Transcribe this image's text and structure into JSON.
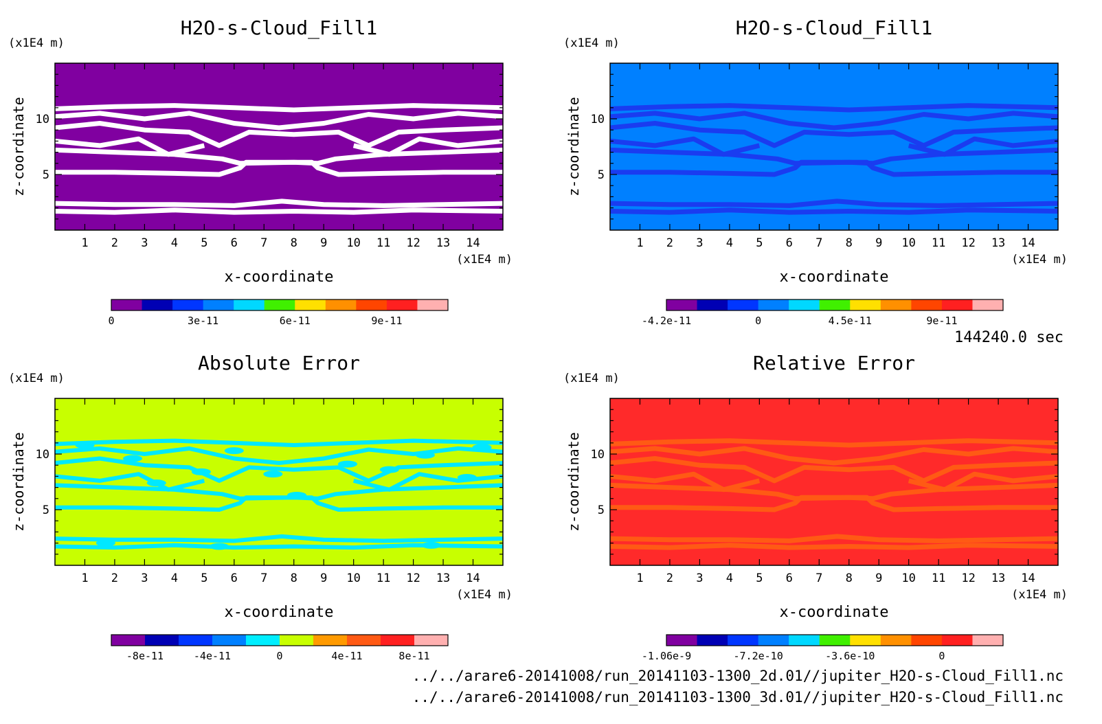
{
  "time_label": "144240.0 sec",
  "files": [
    "../../arare6-20141008/run_20141103-1300_2d.01//jupiter_H2O-s-Cloud_Fill1.nc",
    "../../arare6-20141008/run_20141103-1300_3d.01//jupiter_H2O-s-Cloud_Fill1.nc"
  ],
  "colors": {
    "purple": "#8000a0",
    "light_blue": "#0080ff",
    "yellow_green": "#c8ff00",
    "red": "#ff2a2a",
    "white": "#ffffff",
    "contour_dark_blue": "#1a3cf0",
    "contour_cyan": "#00e8ff",
    "contour_orange": "#ff5a14"
  },
  "chart_data": [
    {
      "type": "heatmap",
      "title": "H2O-s-Cloud_Fill1",
      "xlabel": "x-coordinate",
      "ylabel": "z-coordinate",
      "x_unit": "(x1E4 m)",
      "y_unit": "(x1E4 m)",
      "x_ticks": [
        1,
        2,
        3,
        4,
        5,
        6,
        7,
        8,
        9,
        10,
        11,
        12,
        13,
        14
      ],
      "y_ticks": [
        5,
        10
      ],
      "xlim": [
        0,
        15
      ],
      "ylim": [
        0,
        15
      ],
      "background": "#8000a0",
      "contour_color": "#ffffff",
      "colorbar": {
        "colors": [
          "#8000a0",
          "#0000b4",
          "#0036ff",
          "#0080ff",
          "#00d8ff",
          "#40f000",
          "#ffe000",
          "#ff9000",
          "#ff4500",
          "#ff2020",
          "#ffb0b0"
        ],
        "labels": [
          {
            "text": "0",
            "at": 0
          },
          {
            "text": "3e-11",
            "at": 3
          },
          {
            "text": "6e-11",
            "at": 6
          },
          {
            "text": "9e-11",
            "at": 9
          }
        ]
      }
    },
    {
      "type": "heatmap",
      "title": "H2O-s-Cloud_Fill1",
      "xlabel": "x-coordinate",
      "ylabel": "z-coordinate",
      "x_unit": "(x1E4 m)",
      "y_unit": "(x1E4 m)",
      "x_ticks": [
        1,
        2,
        3,
        4,
        5,
        6,
        7,
        8,
        9,
        10,
        11,
        12,
        13,
        14
      ],
      "y_ticks": [
        5,
        10
      ],
      "xlim": [
        0,
        15
      ],
      "ylim": [
        0,
        15
      ],
      "background": "#0080ff",
      "contour_color": "#1a3cf0",
      "colorbar": {
        "colors": [
          "#8000a0",
          "#0000b4",
          "#0036ff",
          "#0080ff",
          "#00d8ff",
          "#40f000",
          "#ffe000",
          "#ff9000",
          "#ff4500",
          "#ff2020",
          "#ffb0b0"
        ],
        "labels": [
          {
            "text": "-4.2e-11",
            "at": 0
          },
          {
            "text": "0",
            "at": 3
          },
          {
            "text": "4.5e-11",
            "at": 6
          },
          {
            "text": "9e-11",
            "at": 9
          }
        ]
      }
    },
    {
      "type": "heatmap",
      "title": "Absolute Error",
      "xlabel": "x-coordinate",
      "ylabel": "z-coordinate",
      "x_unit": "(x1E4 m)",
      "y_unit": "(x1E4 m)",
      "x_ticks": [
        1,
        2,
        3,
        4,
        5,
        6,
        7,
        8,
        9,
        10,
        11,
        12,
        13,
        14
      ],
      "y_ticks": [
        5,
        10
      ],
      "xlim": [
        0,
        15
      ],
      "ylim": [
        0,
        15
      ],
      "background": "#c8ff00",
      "contour_color": "#00e8ff",
      "colorbar": {
        "colors": [
          "#8000a0",
          "#0000b4",
          "#0036ff",
          "#0080ff",
          "#00eeff",
          "#c8ff00",
          "#ff9a00",
          "#ff5a14",
          "#ff2020",
          "#ffb0b0"
        ],
        "labels": [
          {
            "text": "-8e-11",
            "at": 1
          },
          {
            "text": "-4e-11",
            "at": 3
          },
          {
            "text": "0",
            "at": 5
          },
          {
            "text": "4e-11",
            "at": 7
          },
          {
            "text": "8e-11",
            "at": 9
          }
        ]
      }
    },
    {
      "type": "heatmap",
      "title": "Relative Error",
      "xlabel": "x-coordinate",
      "ylabel": "z-coordinate",
      "x_unit": "(x1E4 m)",
      "y_unit": "(x1E4 m)",
      "x_ticks": [
        1,
        2,
        3,
        4,
        5,
        6,
        7,
        8,
        9,
        10,
        11,
        12,
        13,
        14
      ],
      "y_ticks": [
        5,
        10
      ],
      "xlim": [
        0,
        15
      ],
      "ylim": [
        0,
        15
      ],
      "background": "#ff2a2a",
      "contour_color": "#ff5a14",
      "colorbar": {
        "colors": [
          "#8000a0",
          "#0000b4",
          "#0036ff",
          "#0080ff",
          "#00d8ff",
          "#40f000",
          "#ffe000",
          "#ff9000",
          "#ff4500",
          "#ff2020",
          "#ffb0b0"
        ],
        "labels": [
          {
            "text": "-1.06e-9",
            "at": 0
          },
          {
            "text": "-7.2e-10",
            "at": 3
          },
          {
            "text": "-3.6e-10",
            "at": 6
          },
          {
            "text": "0",
            "at": 9
          }
        ]
      }
    }
  ]
}
